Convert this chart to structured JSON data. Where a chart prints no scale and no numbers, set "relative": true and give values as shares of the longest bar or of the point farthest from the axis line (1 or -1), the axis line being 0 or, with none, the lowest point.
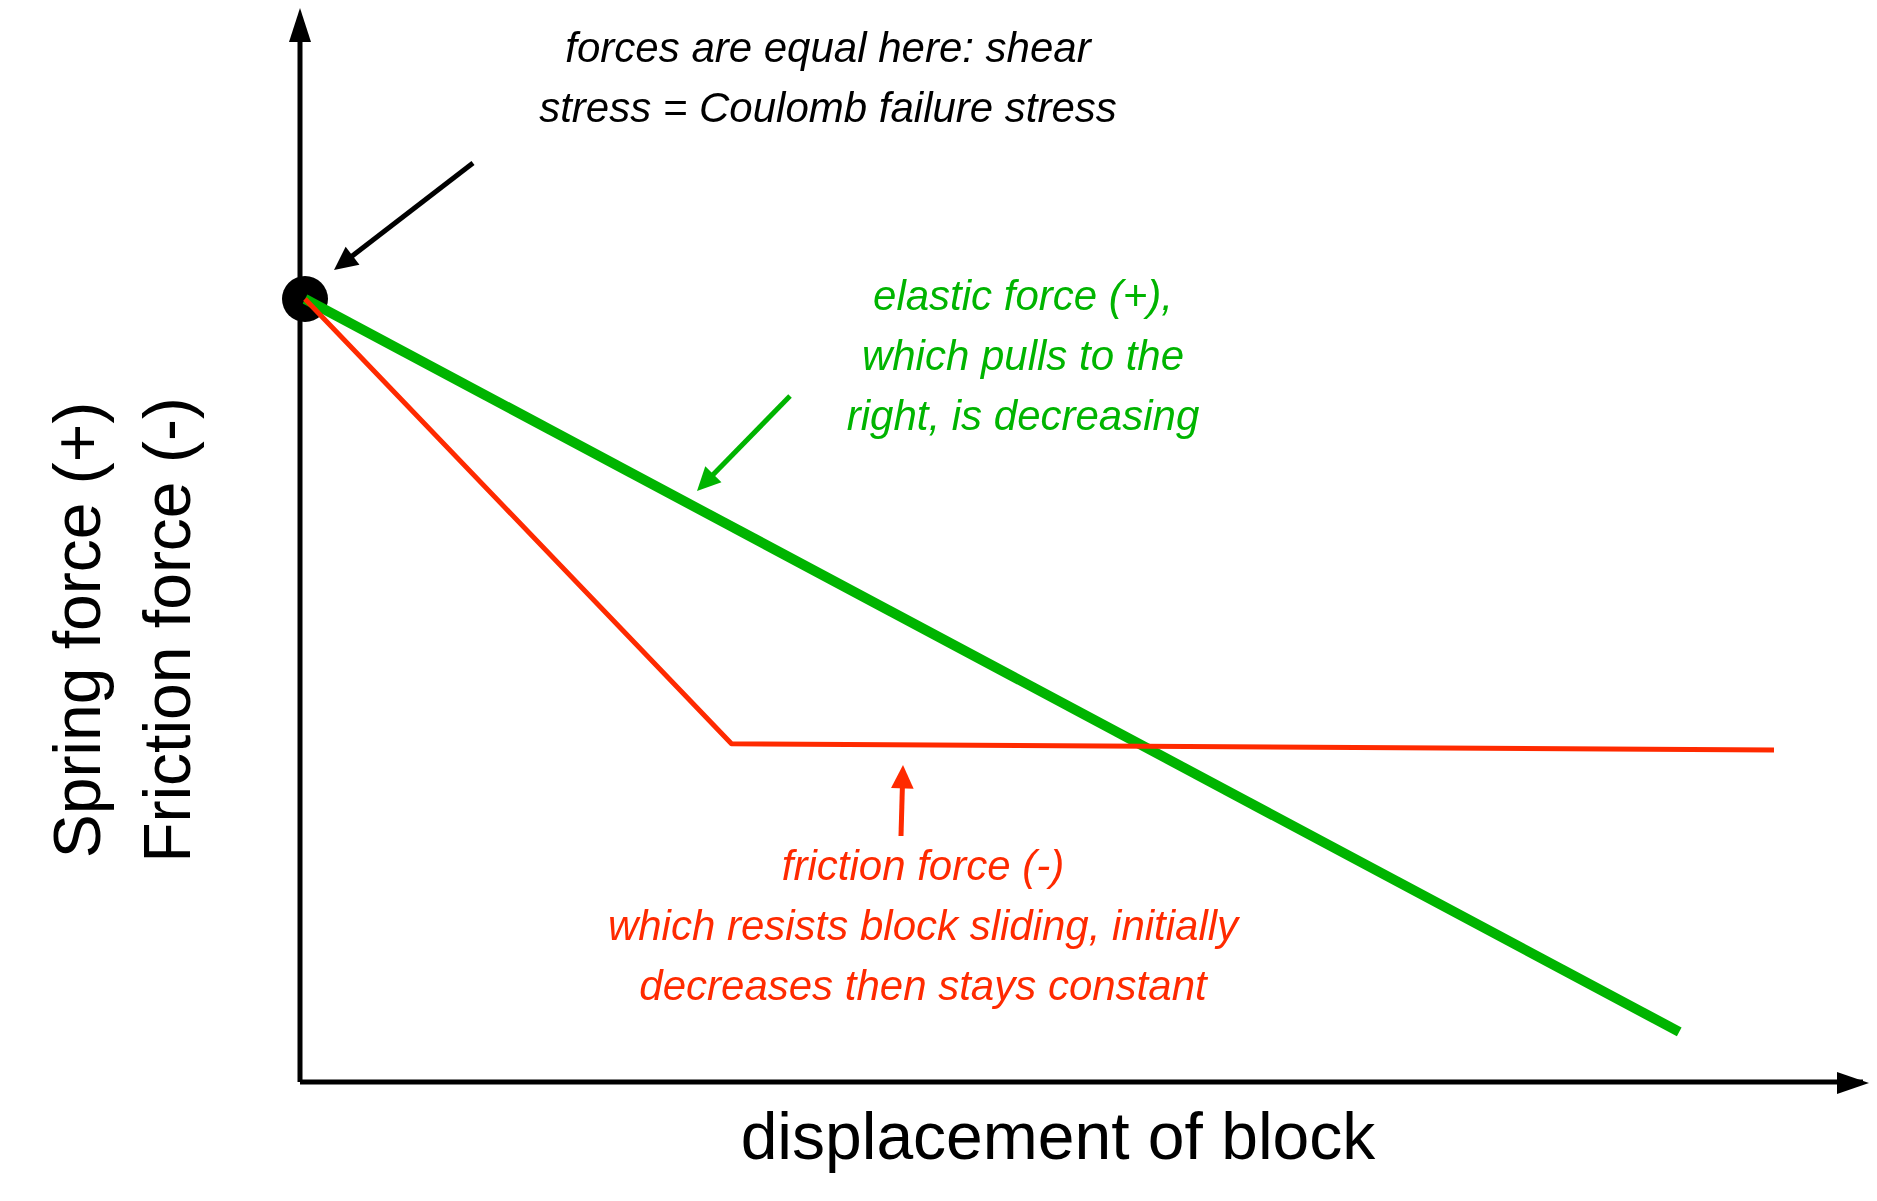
{
  "chart_data": {
    "type": "line",
    "relative": true,
    "xlabel": "displacement of block",
    "ylabel": "Spring force (+) Friction force (-)",
    "categories": [
      null,
      null,
      null,
      null,
      null,
      null,
      null,
      null,
      null,
      null,
      null,
      null,
      null,
      null,
      null,
      null,
      null,
      null,
      null,
      null,
      null,
      null,
      null,
      null,
      null,
      null,
      null,
      null,
      null,
      null,
      null,
      null
    ],
    "series": [
      {
        "name": "elastic force (+), which pulls to the right, is decreasing",
        "color": "#00b400",
        "values": [
          1,
          null,
          null,
          null,
          null,
          null,
          null,
          null,
          null,
          null,
          null,
          null,
          null,
          null,
          null,
          null,
          null,
          null,
          null,
          null,
          null,
          null,
          null,
          null,
          null,
          null,
          null,
          null,
          null,
          0.064,
          null,
          null
        ]
      },
      {
        "color": "#ff2a00",
        "values": [
          1,
          null,
          null,
          null,
          null,
          null,
          null,
          null,
          null,
          0.432,
          null,
          null,
          null,
          null,
          null,
          null,
          null,
          null,
          null,
          null,
          null,
          null,
          null,
          null,
          null,
          null,
          null,
          null,
          null,
          null,
          null,
          0.424
        ]
      }
    ],
    "annotations": [
      "forces are equal here: shear stress = Coulomb failure stress",
      "friction force (-)",
      "which resists block sliding, initially decreases then stays constant"
    ],
    "grid": false,
    "legend": false,
    "marker": "none",
    "line_style": "solid"
  }
}
